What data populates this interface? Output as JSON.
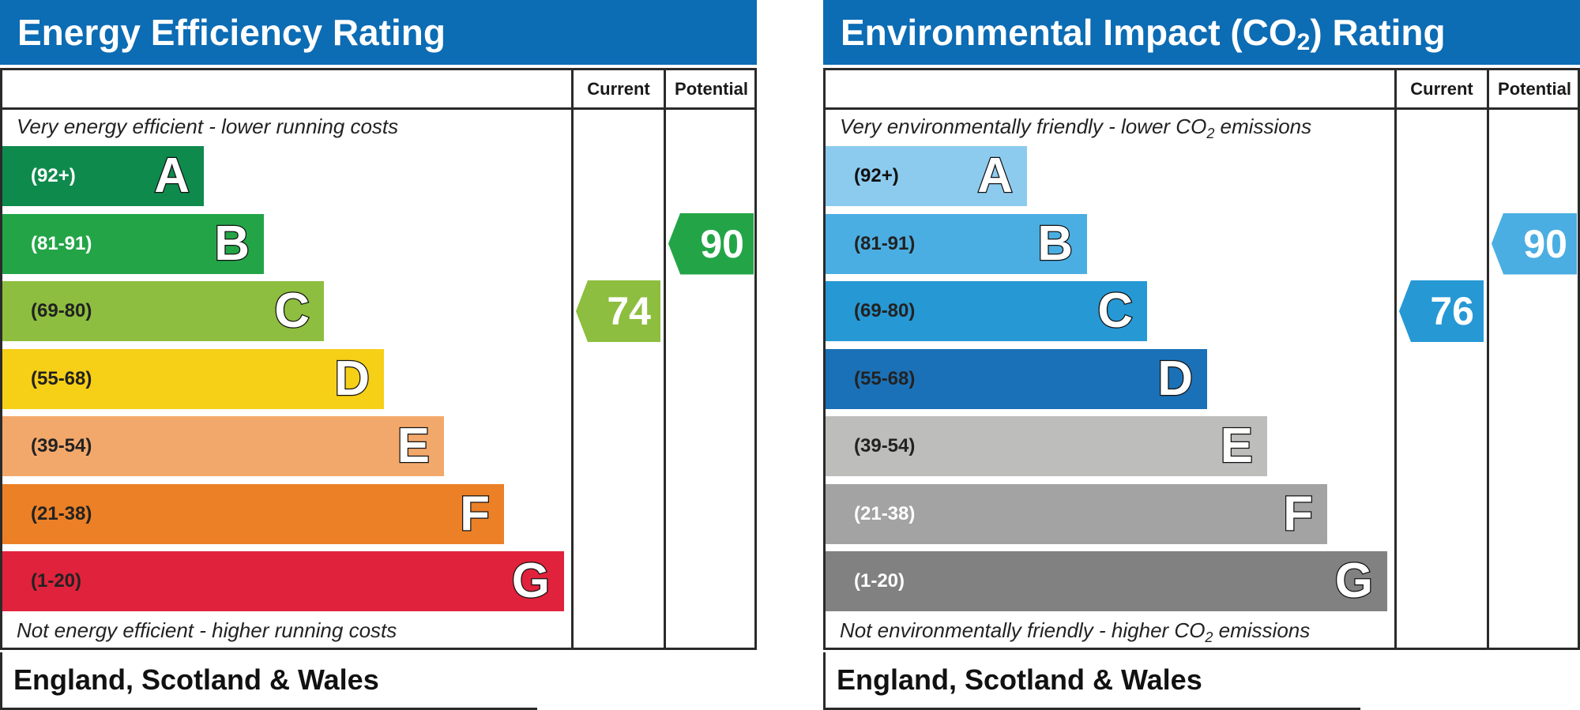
{
  "chart_data": [
    {
      "type": "bar",
      "title": "Energy Efficiency Rating",
      "columns": [
        "Current",
        "Potential"
      ],
      "top_caption": "Very energy efficient - lower running costs",
      "bottom_caption": "Not energy efficient - higher running costs",
      "footer": "England, Scotland & Wales",
      "bands": [
        {
          "letter": "A",
          "range": "(92+)",
          "color": "#0f8a4d",
          "text_color": "#ffffff"
        },
        {
          "letter": "B",
          "range": "(81-91)",
          "color": "#23a547",
          "text_color": "#ffffff"
        },
        {
          "letter": "C",
          "range": "(69-80)",
          "color": "#8dbe3f",
          "text_color": "#222222"
        },
        {
          "letter": "D",
          "range": "(55-68)",
          "color": "#f6cf17",
          "text_color": "#222222"
        },
        {
          "letter": "E",
          "range": "(39-54)",
          "color": "#f3a86b",
          "text_color": "#222222"
        },
        {
          "letter": "F",
          "range": "(21-38)",
          "color": "#ec8026",
          "text_color": "#222222"
        },
        {
          "letter": "G",
          "range": "(1-20)",
          "color": "#e1223c",
          "text_color": "#222222"
        }
      ],
      "current": {
        "value": 74,
        "band": "C",
        "color": "#8dbe3f"
      },
      "potential": {
        "value": 90,
        "band": "B",
        "color": "#23a547"
      }
    },
    {
      "type": "bar",
      "title_parts": [
        "Environmental Impact (CO",
        "2",
        ") Rating"
      ],
      "columns": [
        "Current",
        "Potential"
      ],
      "top_caption_parts": [
        "Very environmentally friendly - lower CO",
        "2",
        " emissions"
      ],
      "bottom_caption_parts": [
        "Not environmentally friendly - higher CO",
        "2",
        " emissions"
      ],
      "footer": "England, Scotland & Wales",
      "bands": [
        {
          "letter": "A",
          "range": "(92+)",
          "color": "#8ccbee",
          "text_color": "#111111"
        },
        {
          "letter": "B",
          "range": "(81-91)",
          "color": "#4baee2",
          "text_color": "#222222"
        },
        {
          "letter": "C",
          "range": "(69-80)",
          "color": "#2698d4",
          "text_color": "#222222"
        },
        {
          "letter": "D",
          "range": "(55-68)",
          "color": "#1b71b7",
          "text_color": "#222222"
        },
        {
          "letter": "E",
          "range": "(39-54)",
          "color": "#bdbdbb",
          "text_color": "#222222"
        },
        {
          "letter": "F",
          "range": "(21-38)",
          "color": "#a3a3a3",
          "text_color": "#ffffff"
        },
        {
          "letter": "G",
          "range": "(1-20)",
          "color": "#818181",
          "text_color": "#ffffff"
        }
      ],
      "current": {
        "value": 76,
        "band": "C",
        "color": "#2698d4"
      },
      "potential": {
        "value": 90,
        "band": "B",
        "color": "#4baee2"
      }
    }
  ]
}
